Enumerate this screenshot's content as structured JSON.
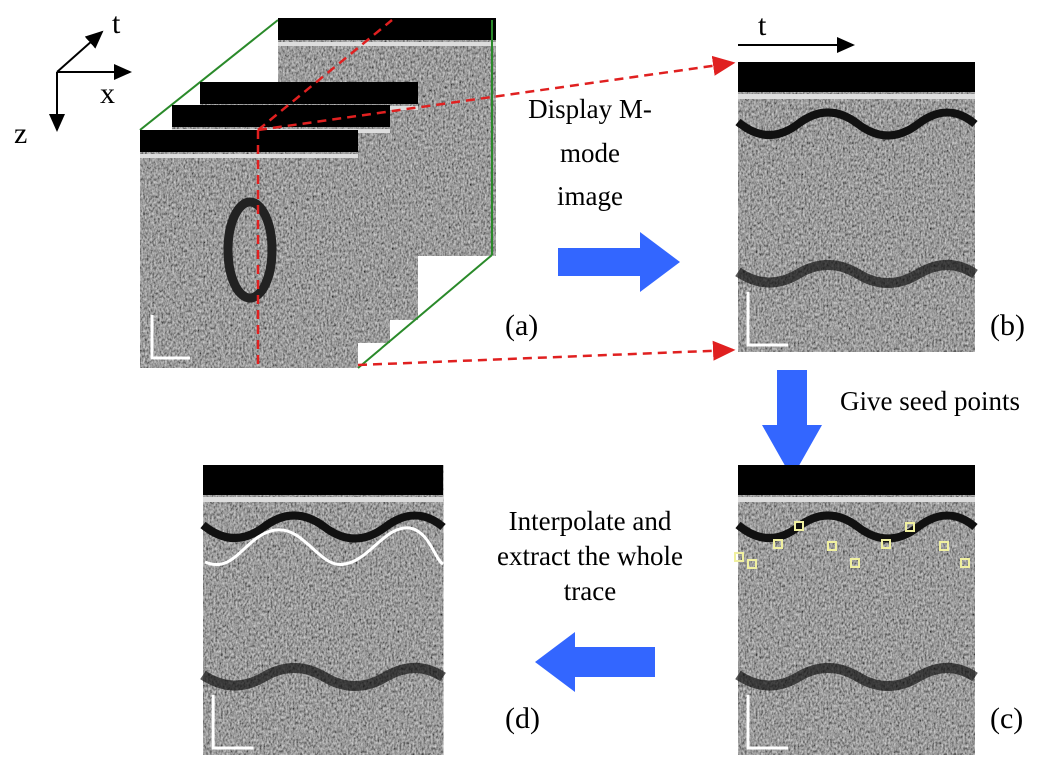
{
  "axes": {
    "t": "t",
    "x": "x",
    "z": "z"
  },
  "panels": {
    "a": "(a)",
    "b": "(b)",
    "c": "(c)",
    "d": "(d)"
  },
  "time_label": "t",
  "steps": {
    "display": [
      "Display M-",
      "mode",
      "image"
    ],
    "seed": "Give seed points",
    "interpolate": [
      "Interpolate and",
      "extract the whole",
      "trace"
    ]
  }
}
